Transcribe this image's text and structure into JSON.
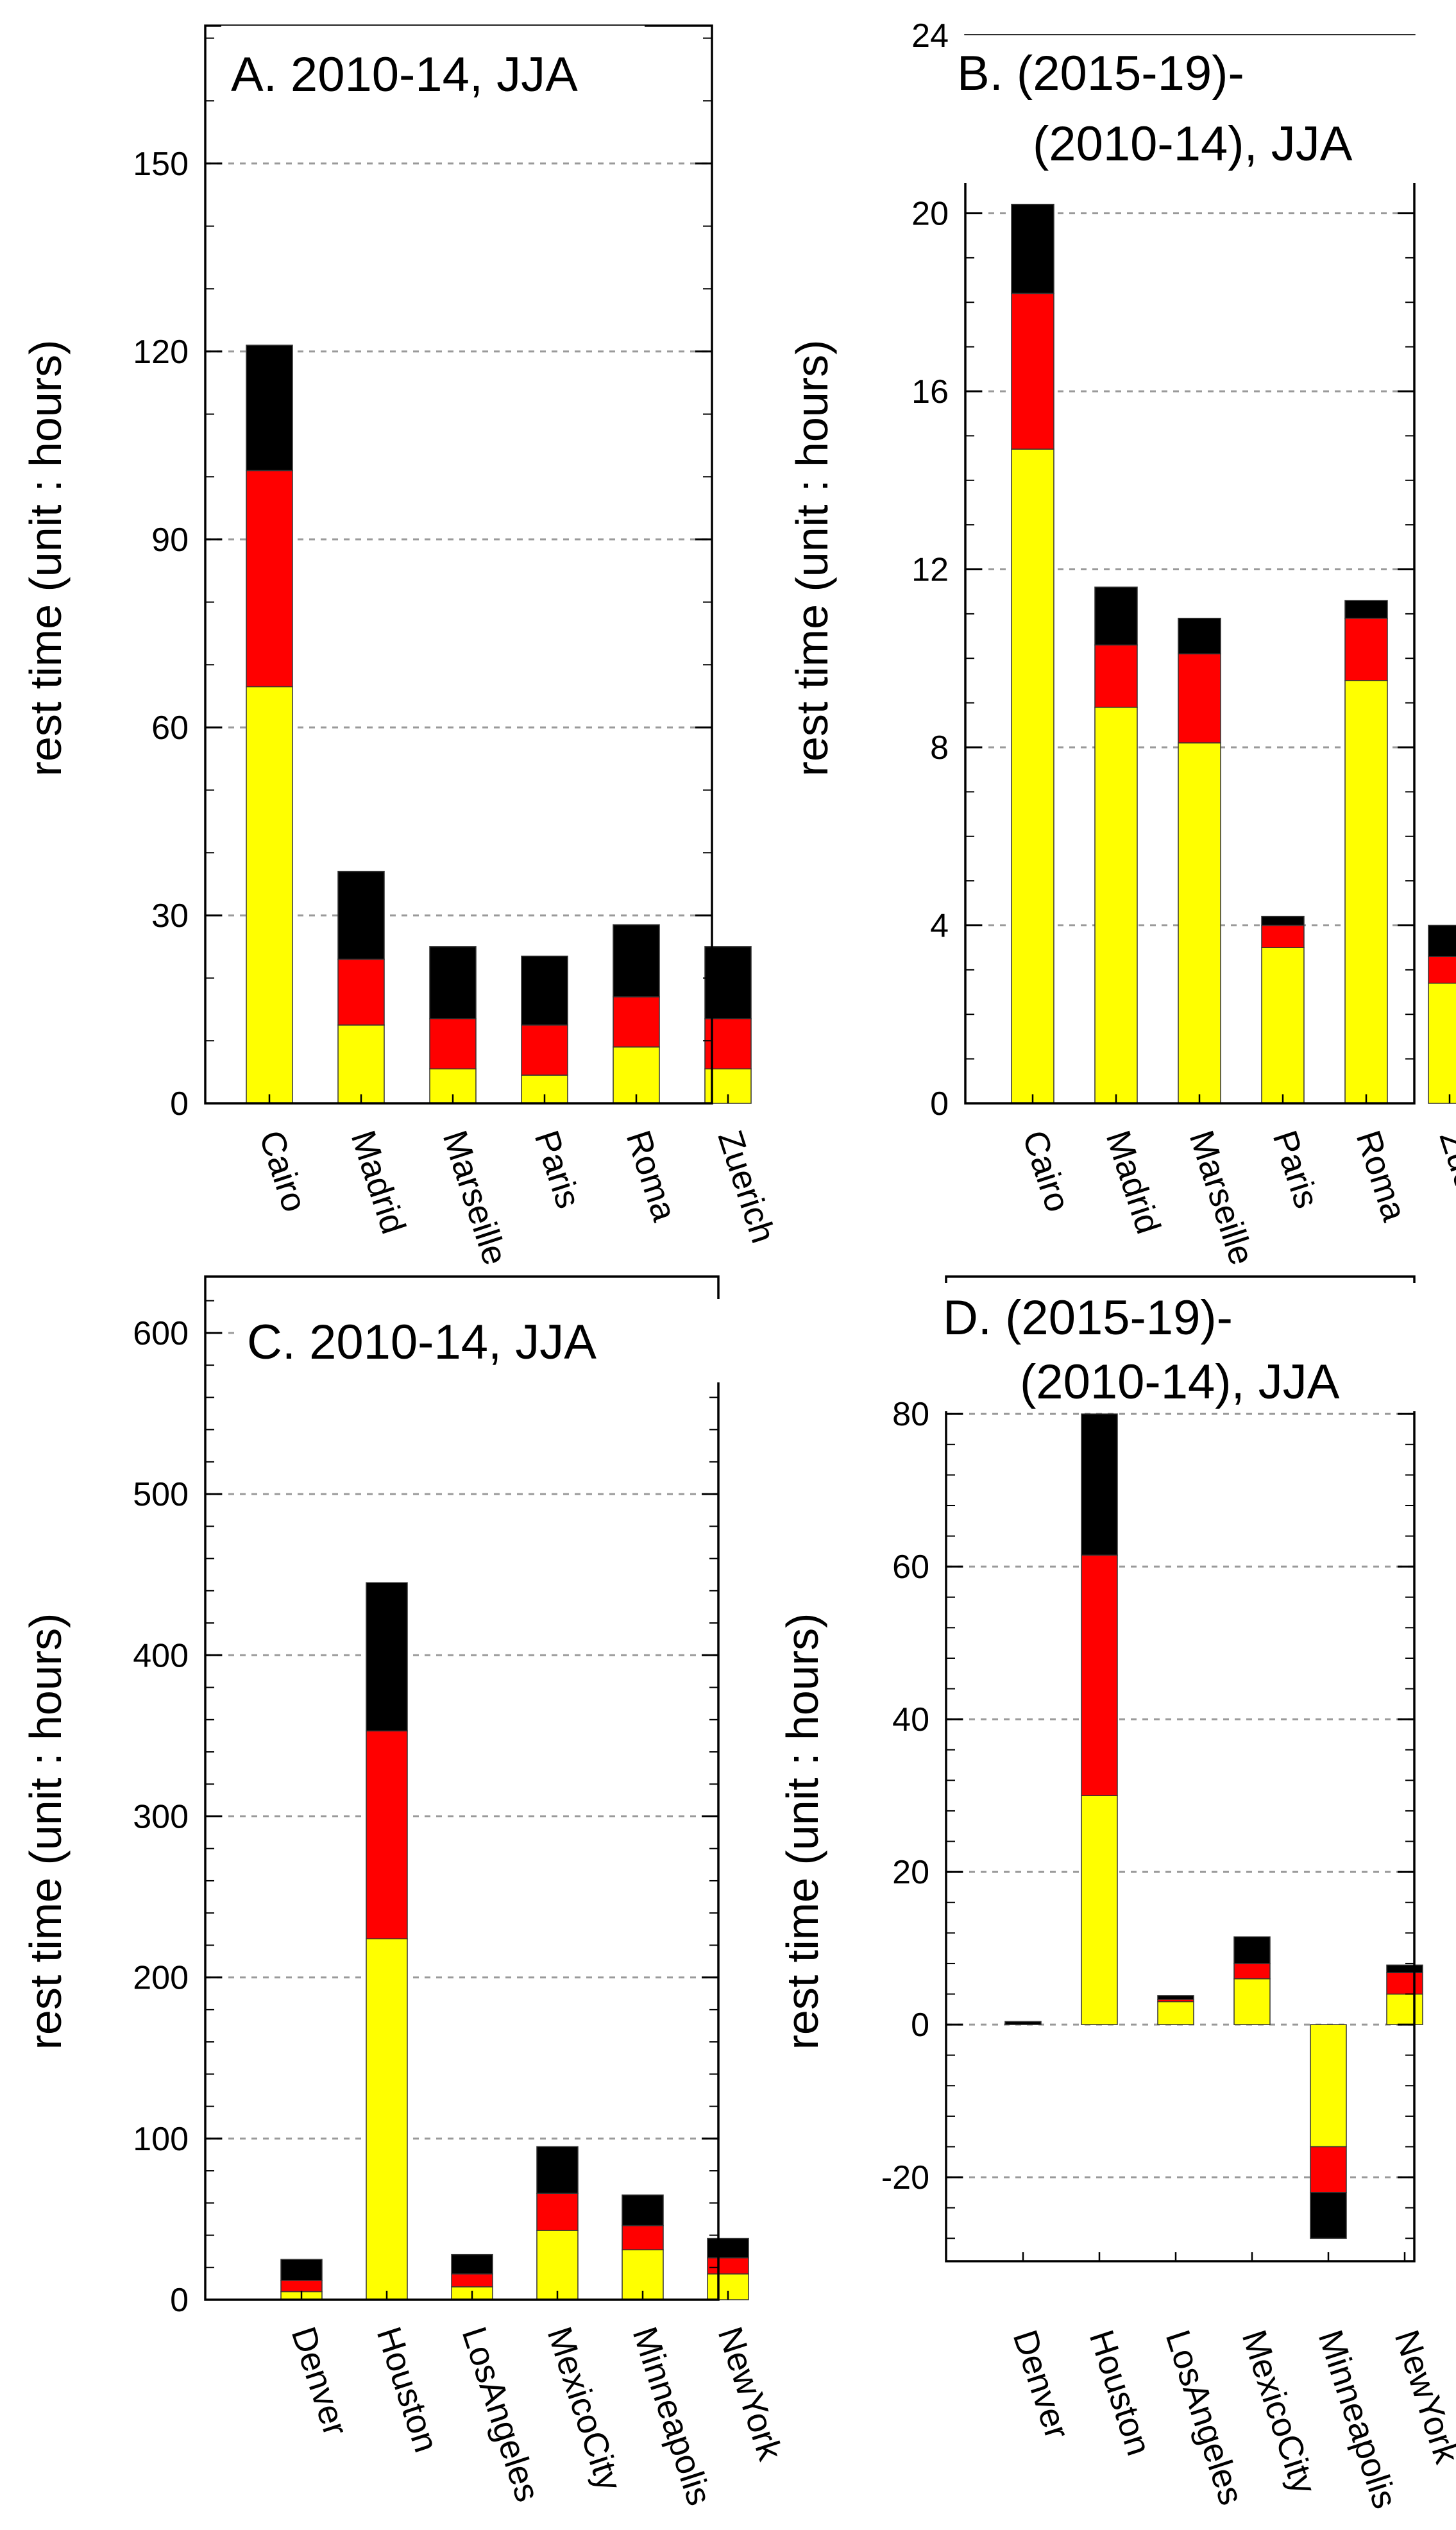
{
  "figure": {
    "panels": [
      {
        "id": "A",
        "title_lines": [
          "A. 2010-14, JJA"
        ]
      },
      {
        "id": "B",
        "title_lines": [
          "B. (2015-19)-",
          "(2010-14), JJA"
        ]
      },
      {
        "id": "C",
        "title_lines": [
          "C. 2010-14, JJA"
        ]
      },
      {
        "id": "D",
        "title_lines": [
          "D. (2015-19)-",
          "(2010-14), JJA"
        ]
      }
    ]
  },
  "colors": {
    "yellow": "#ffff00",
    "red": "#ff0000",
    "black": "#000000",
    "grid": "#9a9a9a"
  },
  "chart_data": [
    {
      "id": "A",
      "type": "bar",
      "stacked": true,
      "title": "A. 2010-14, JJA",
      "ylabel": "rest time (unit : hours)",
      "xlabel": "",
      "categories": [
        "Cairo",
        "Madrid",
        "Marseille",
        "Paris",
        "Roma",
        "Zuerich"
      ],
      "series": [
        {
          "name": "yellow",
          "color": "#ffff00",
          "values": [
            66.5,
            12.5,
            5.5,
            4.5,
            9,
            5.5
          ]
        },
        {
          "name": "red",
          "color": "#ff0000",
          "values": [
            34.5,
            10.5,
            8,
            8,
            8,
            8
          ]
        },
        {
          "name": "black",
          "color": "#000000",
          "values": [
            20,
            14,
            11.5,
            11,
            11.5,
            11.5
          ]
        }
      ],
      "ylim": [
        0,
        150
      ],
      "ymax_axis": 172,
      "yticks": [
        0,
        30,
        60,
        90,
        120,
        150
      ],
      "minor_step": 10,
      "grid": true
    },
    {
      "id": "B",
      "type": "bar",
      "stacked": true,
      "title": "B. (2015-19)-(2010-14), JJA",
      "ylabel": "rest time (unit : hours)",
      "xlabel": "",
      "categories": [
        "Cairo",
        "Madrid",
        "Marseille",
        "Paris",
        "Roma",
        "Zuerich"
      ],
      "series": [
        {
          "name": "yellow",
          "color": "#ffff00",
          "values": [
            14.7,
            8.9,
            8.1,
            3.5,
            9.5,
            2.7
          ]
        },
        {
          "name": "red",
          "color": "#ff0000",
          "values": [
            3.5,
            1.4,
            2,
            0.5,
            1.4,
            0.6
          ]
        },
        {
          "name": "black",
          "color": "#000000",
          "values": [
            2,
            1.3,
            0.8,
            0.2,
            0.4,
            0.7
          ]
        }
      ],
      "ylim": [
        0,
        24
      ],
      "ymax_axis": 24,
      "yticks": [
        0,
        4,
        8,
        12,
        16,
        20,
        24
      ],
      "minor_step": 1,
      "grid": true
    },
    {
      "id": "C",
      "type": "bar",
      "stacked": true,
      "title": "C. 2010-14, JJA",
      "ylabel": "rest time (unit : hours)",
      "xlabel": "",
      "categories": [
        "Denver",
        "Houston",
        "LosAngeles",
        "MexicoCity",
        "Minneapolis",
        "NewYork"
      ],
      "series": [
        {
          "name": "yellow",
          "color": "#ffff00",
          "values": [
            5,
            224,
            8,
            43,
            31,
            16
          ]
        },
        {
          "name": "red",
          "color": "#ff0000",
          "values": [
            7,
            129,
            8,
            23,
            15,
            10
          ]
        },
        {
          "name": "black",
          "color": "#000000",
          "values": [
            13,
            92,
            12,
            29,
            19,
            12
          ]
        }
      ],
      "ylim": [
        0,
        600
      ],
      "ymax_axis": 635,
      "yticks": [
        0,
        100,
        200,
        300,
        400,
        500,
        600
      ],
      "minor_step": 20,
      "grid": true
    },
    {
      "id": "D",
      "type": "bar",
      "stacked": true,
      "title": "D. (2015-19)-(2010-14), JJA",
      "ylabel": "rest time (unit : hours)",
      "xlabel": "",
      "categories": [
        "Denver",
        "Houston",
        "LosAngeles",
        "MexicoCity",
        "Minneapolis",
        "NewYork"
      ],
      "series": [
        {
          "name": "yellow",
          "color": "#ffff00",
          "values": [
            0,
            30,
            3,
            6,
            -16,
            4
          ]
        },
        {
          "name": "red",
          "color": "#ff0000",
          "values": [
            0,
            31.5,
            0.3,
            2,
            -6,
            2.8
          ]
        },
        {
          "name": "black",
          "color": "#000000",
          "values": [
            0.4,
            18.5,
            0.5,
            3.5,
            -6,
            1
          ]
        }
      ],
      "ylim": [
        -30,
        80
      ],
      "ymin_axis": -31,
      "ymax_axis": 98,
      "yticks": [
        -20,
        0,
        20,
        40,
        60,
        80
      ],
      "minor_step": 4,
      "grid": true
    }
  ]
}
